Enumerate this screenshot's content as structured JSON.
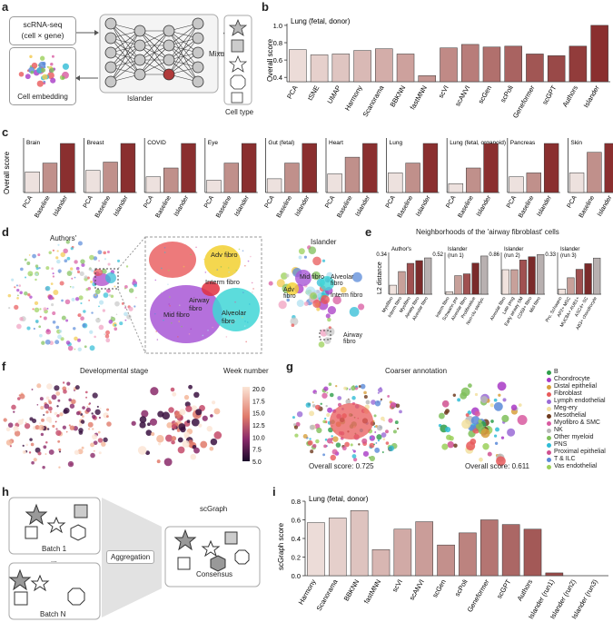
{
  "panels": {
    "a": {
      "label": "a",
      "input_box_line1": "scRNA-seq",
      "input_box_line2": "(cell × gene)",
      "embedding_label": "Cell embedding",
      "model_label": "Islander",
      "mixup_label": "Mixup",
      "celltype_label": "Cell type"
    },
    "b": {
      "label": "b"
    },
    "c": {
      "label": "c",
      "ylabel": "Overall score"
    },
    "d": {
      "label": "d",
      "authors_title": "Authors'",
      "islander_title": "Islander",
      "zoom_labels": [
        "Adv fibro",
        "Interm fibro",
        "Airway fibro",
        "Mid fibro",
        "Alveolar fibro"
      ],
      "right_labels": [
        "Mid fibro",
        "Adv fibro",
        "Alveolar fibro",
        "Interm fibro",
        "Airway fibro"
      ]
    },
    "e": {
      "label": "e",
      "title": "Neighborhoods of the 'airway fibroblast' cells",
      "ylabel": "L2 distance",
      "subplots": [
        {
          "title": "Author's",
          "ymax_label": "0.34",
          "categories": [
            "Myofibro",
            "Interm fibro",
            "Myofibro",
            "Airway fibro",
            "Alveolar fibro"
          ],
          "values": [
            0.22,
            0.27,
            0.3,
            0.31,
            0.32
          ]
        },
        {
          "title": "Islander (run 1)",
          "ymax_label": "0.52",
          "categories": [
            "Interm fibro",
            "Schwann pre",
            "Alveolar fibro",
            "Proliferative",
            "Non-clu sterlyo."
          ],
          "values": [
            0.3,
            0.39,
            0.4,
            0.46,
            0.5
          ]
        },
        {
          "title": "Islander (run 2)",
          "ymax_label": "0.86",
          "categories": [
            "Alveolar fibro",
            "Late prog",
            "Early airway SM",
            "CD59+ fibro",
            "Mid fibro"
          ],
          "values": [
            0.7,
            0.7,
            0.79,
            0.82,
            0.84
          ]
        },
        {
          "title": "Islander (run 3)",
          "ymax_label": "0.33",
          "categories": [
            "Pro. Schwann",
            "AP2+ MSC",
            "MUC8A+ AUB1+",
            "ASC4+ SC",
            "AB3+ chondrocyte"
          ],
          "values": [
            0.2,
            0.24,
            0.27,
            0.29,
            0.31
          ]
        }
      ]
    },
    "f": {
      "label": "f",
      "title": "Developmental stage",
      "colorbar_title": "Week number",
      "colorbar_ticks": [
        "20.0",
        "17.5",
        "15.0",
        "12.5",
        "10.0",
        "7.5",
        "5.0"
      ]
    },
    "g": {
      "label": "g",
      "title": "Coarser annotation",
      "score_left": "Overall score: 0.725",
      "score_right": "Overall score: 0.611",
      "legend": [
        {
          "name": "B",
          "color": "#2e9e4a"
        },
        {
          "name": "Chondrocyte",
          "color": "#a83ac6"
        },
        {
          "name": "Distal epithelial",
          "color": "#d8a03c"
        },
        {
          "name": "Fibroblast",
          "color": "#e8595a"
        },
        {
          "name": "Lymph endothelial",
          "color": "#9a6bd6"
        },
        {
          "name": "Meg-ery",
          "color": "#f2e0a0"
        },
        {
          "name": "Mesothelial",
          "color": "#6e3b1f"
        },
        {
          "name": "Myofibro & SMC",
          "color": "#d85aa0"
        },
        {
          "name": "NK",
          "color": "#b8b8b8"
        },
        {
          "name": "Other myeloid",
          "color": "#7fbf5a"
        },
        {
          "name": "PNS",
          "color": "#2fbcd6"
        },
        {
          "name": "Proximal epithelial",
          "color": "#d05090"
        },
        {
          "name": "T & ILC",
          "color": "#5a8ad8"
        },
        {
          "name": "Vas endothelial",
          "color": "#9bd05a"
        }
      ]
    },
    "h": {
      "label": "h",
      "scgraph_title": "scGraph",
      "batch1": "Batch 1",
      "ellipsis": "...",
      "batchN": "Batch N",
      "aggregation": "Aggregation",
      "consensus": "Consensus"
    },
    "i": {
      "label": "i"
    }
  },
  "chart_data": [
    {
      "id": "b",
      "type": "bar",
      "title": "Lung (fetal, donor)",
      "ylabel": "Overall score",
      "yticks": [
        "0.4",
        "0.6",
        "0.8",
        "1.0"
      ],
      "ylim": [
        0.35,
        1.02
      ],
      "categories": [
        "PCA",
        "tSNE",
        "UMAP",
        "Harmony",
        "Scanorama",
        "BBKNN",
        "fastMNN",
        "scVI",
        "scANVI",
        "scGen",
        "scPoli",
        "Geneformer",
        "scGPT",
        "Authors",
        "Islander"
      ],
      "values": [
        0.72,
        0.66,
        0.67,
        0.71,
        0.73,
        0.67,
        0.42,
        0.74,
        0.78,
        0.75,
        0.76,
        0.67,
        0.65,
        0.76,
        1.0
      ]
    },
    {
      "id": "c",
      "type": "bar",
      "ylabel": "Overall score",
      "categories": [
        "PCA",
        "Baseline",
        "Islander"
      ],
      "panels": [
        {
          "name": "Brain",
          "values": [
            0.42,
            0.6,
            1.0
          ]
        },
        {
          "name": "Breast",
          "values": [
            0.45,
            0.62,
            1.0
          ]
        },
        {
          "name": "COVID",
          "values": [
            0.32,
            0.5,
            1.0
          ]
        },
        {
          "name": "Eye",
          "values": [
            0.25,
            0.6,
            1.0
          ]
        },
        {
          "name": "Gut (fetal)",
          "values": [
            0.28,
            0.6,
            1.0
          ]
        },
        {
          "name": "Heart",
          "values": [
            0.38,
            0.72,
            1.0
          ]
        },
        {
          "name": "Lung",
          "values": [
            0.4,
            0.6,
            1.0
          ]
        },
        {
          "name": "Lung (fetal, organoid)",
          "values": [
            0.18,
            0.5,
            1.0
          ]
        },
        {
          "name": "Pancreas",
          "values": [
            0.32,
            0.4,
            1.0
          ]
        },
        {
          "name": "Skin",
          "values": [
            0.4,
            0.82,
            1.0
          ]
        }
      ]
    },
    {
      "id": "i",
      "type": "bar",
      "title": "Lung (fetal, donor)",
      "ylabel": "scGraph score",
      "yticks": [
        "0.0",
        "0.2",
        "0.4",
        "0.6",
        "0.8"
      ],
      "ylim": [
        0,
        0.8
      ],
      "categories": [
        "Harmony",
        "Scanorama",
        "BBKNN",
        "fastMNN",
        "scVI",
        "scANVI",
        "scGen",
        "scPoli",
        "Geneformer",
        "scGPT",
        "Authors",
        "Islander (run1)",
        "Islander (run2)",
        "Islander (run3)"
      ],
      "values": [
        0.57,
        0.62,
        0.7,
        0.28,
        0.5,
        0.58,
        0.33,
        0.46,
        0.6,
        0.55,
        0.5,
        0.03,
        0.0,
        0.0
      ]
    }
  ]
}
